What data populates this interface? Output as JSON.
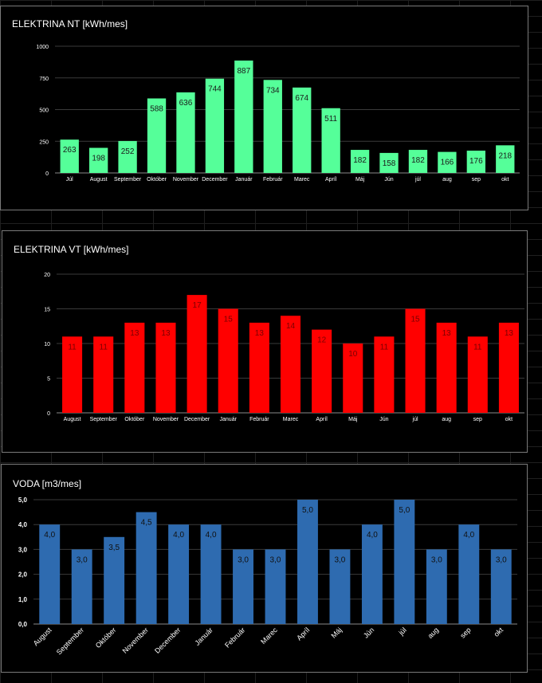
{
  "chart_data": [
    {
      "type": "bar",
      "title": "ELEKTRINA NT [kWh/mes]",
      "categories": [
        "Júl",
        "August",
        "September",
        "Október",
        "November",
        "December",
        "Január",
        "Február",
        "Marec",
        "Apríl",
        "Máj",
        "Jún",
        "júl",
        "aug",
        "sep",
        "okt"
      ],
      "values": [
        263,
        198,
        252,
        588,
        636,
        744,
        887,
        734,
        674,
        511,
        182,
        158,
        182,
        166,
        176,
        218
      ],
      "value_labels": [
        "263",
        "198",
        "252",
        "588",
        "636",
        "744",
        "887",
        "734",
        "674",
        "511",
        "182",
        "158",
        "182",
        "166",
        "176",
        "218"
      ],
      "yticks": [
        "0",
        "250",
        "500",
        "750",
        "1000"
      ],
      "ylim": [
        0,
        1000
      ],
      "grid": true,
      "color": "#55ff99",
      "label_color": "#1a1a1a"
    },
    {
      "type": "bar",
      "title": "ELEKTRINA VT [kWh/mes]",
      "categories": [
        "August",
        "September",
        "Október",
        "November",
        "December",
        "Január",
        "Február",
        "Marec",
        "Apríl",
        "Máj",
        "Jún",
        "júl",
        "aug",
        "sep",
        "okt"
      ],
      "values": [
        11,
        11,
        13,
        13,
        17,
        15,
        13,
        14,
        12,
        10,
        11,
        15,
        13,
        11,
        13
      ],
      "value_labels": [
        "11",
        "11",
        "13",
        "13",
        "17",
        "15",
        "13",
        "14",
        "12",
        "10",
        "11",
        "15",
        "13",
        "11",
        "13"
      ],
      "yticks": [
        "0",
        "5",
        "10",
        "15",
        "20"
      ],
      "ylim": [
        0,
        20
      ],
      "grid": true,
      "color": "#ff0000",
      "label_color": "#7a0000"
    },
    {
      "type": "bar",
      "title": "VODA [m3/mes]",
      "categories": [
        "August",
        "September",
        "Október",
        "November",
        "December",
        "Január",
        "Február",
        "Marec",
        "Apríl",
        "Máj",
        "Jún",
        "júl",
        "aug",
        "sep",
        "okt"
      ],
      "values": [
        4.0,
        3.0,
        3.5,
        4.5,
        4.0,
        4.0,
        3.0,
        3.0,
        5.0,
        3.0,
        4.0,
        5.0,
        3.0,
        4.0,
        3.0
      ],
      "value_labels": [
        "4,0",
        "3,0",
        "3,5",
        "4,5",
        "4,0",
        "4,0",
        "3,0",
        "3,0",
        "5,0",
        "3,0",
        "4,0",
        "5,0",
        "3,0",
        "4,0",
        "3,0"
      ],
      "yticks": [
        "0,0",
        "1,0",
        "2,0",
        "3,0",
        "4,0",
        "5,0"
      ],
      "ylim": [
        0,
        5
      ],
      "grid": true,
      "color": "#2e6bb0",
      "label_color": "#111111"
    }
  ]
}
